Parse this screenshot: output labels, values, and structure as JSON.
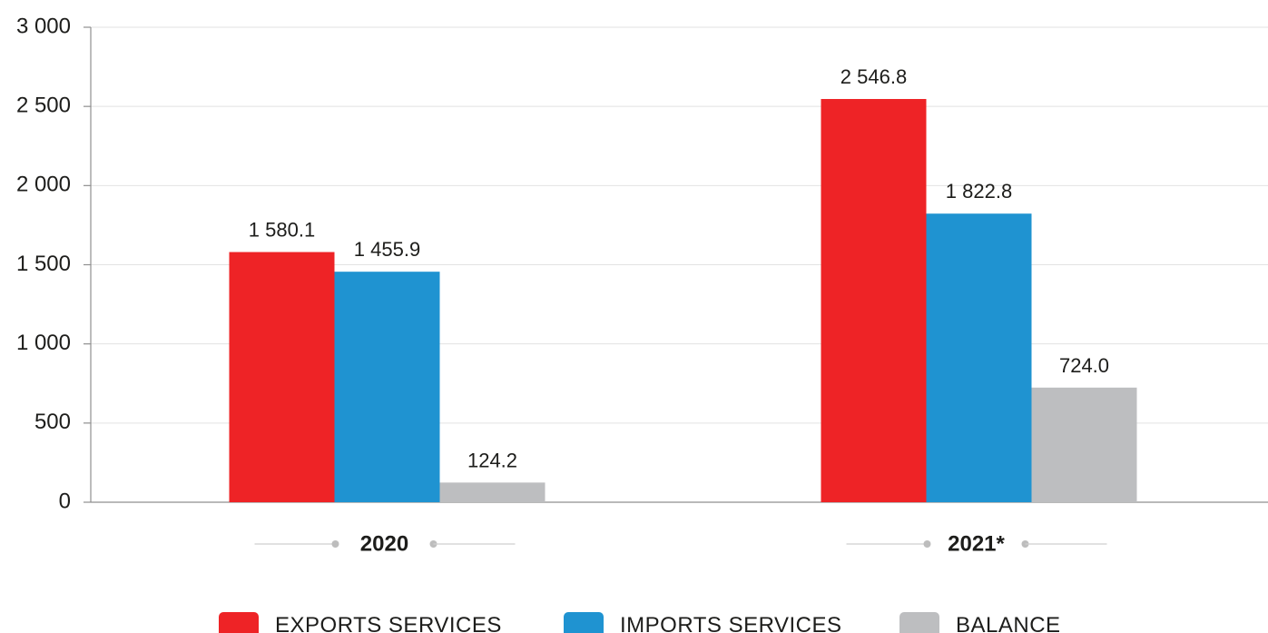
{
  "chart_data": {
    "type": "bar",
    "categories": [
      "2020",
      "2021*"
    ],
    "series": [
      {
        "name": "EXPORTS SERVICES",
        "values": [
          1580.1,
          2546.8
        ],
        "value_labels": [
          "1 580.1",
          "2 546.8"
        ],
        "color": "#EE2326"
      },
      {
        "name": "IMPORTS SERVICES",
        "values": [
          1455.9,
          1822.8
        ],
        "value_labels": [
          "1 455.9",
          "1 822.8"
        ],
        "color": "#1F93D1"
      },
      {
        "name": "BALANCE",
        "values": [
          124.2,
          724.0
        ],
        "value_labels": [
          "124.2",
          "724.0"
        ],
        "color": "#BDBEC0"
      }
    ],
    "yticks": [
      0,
      500,
      1000,
      1500,
      2000,
      2500,
      3000
    ],
    "ytick_labels": [
      "0",
      "500",
      "1 000",
      "1 500",
      "2 000",
      "2 500",
      "3 000"
    ],
    "ylim": [
      0,
      3000
    ],
    "grid": true,
    "legend": "bottom"
  }
}
